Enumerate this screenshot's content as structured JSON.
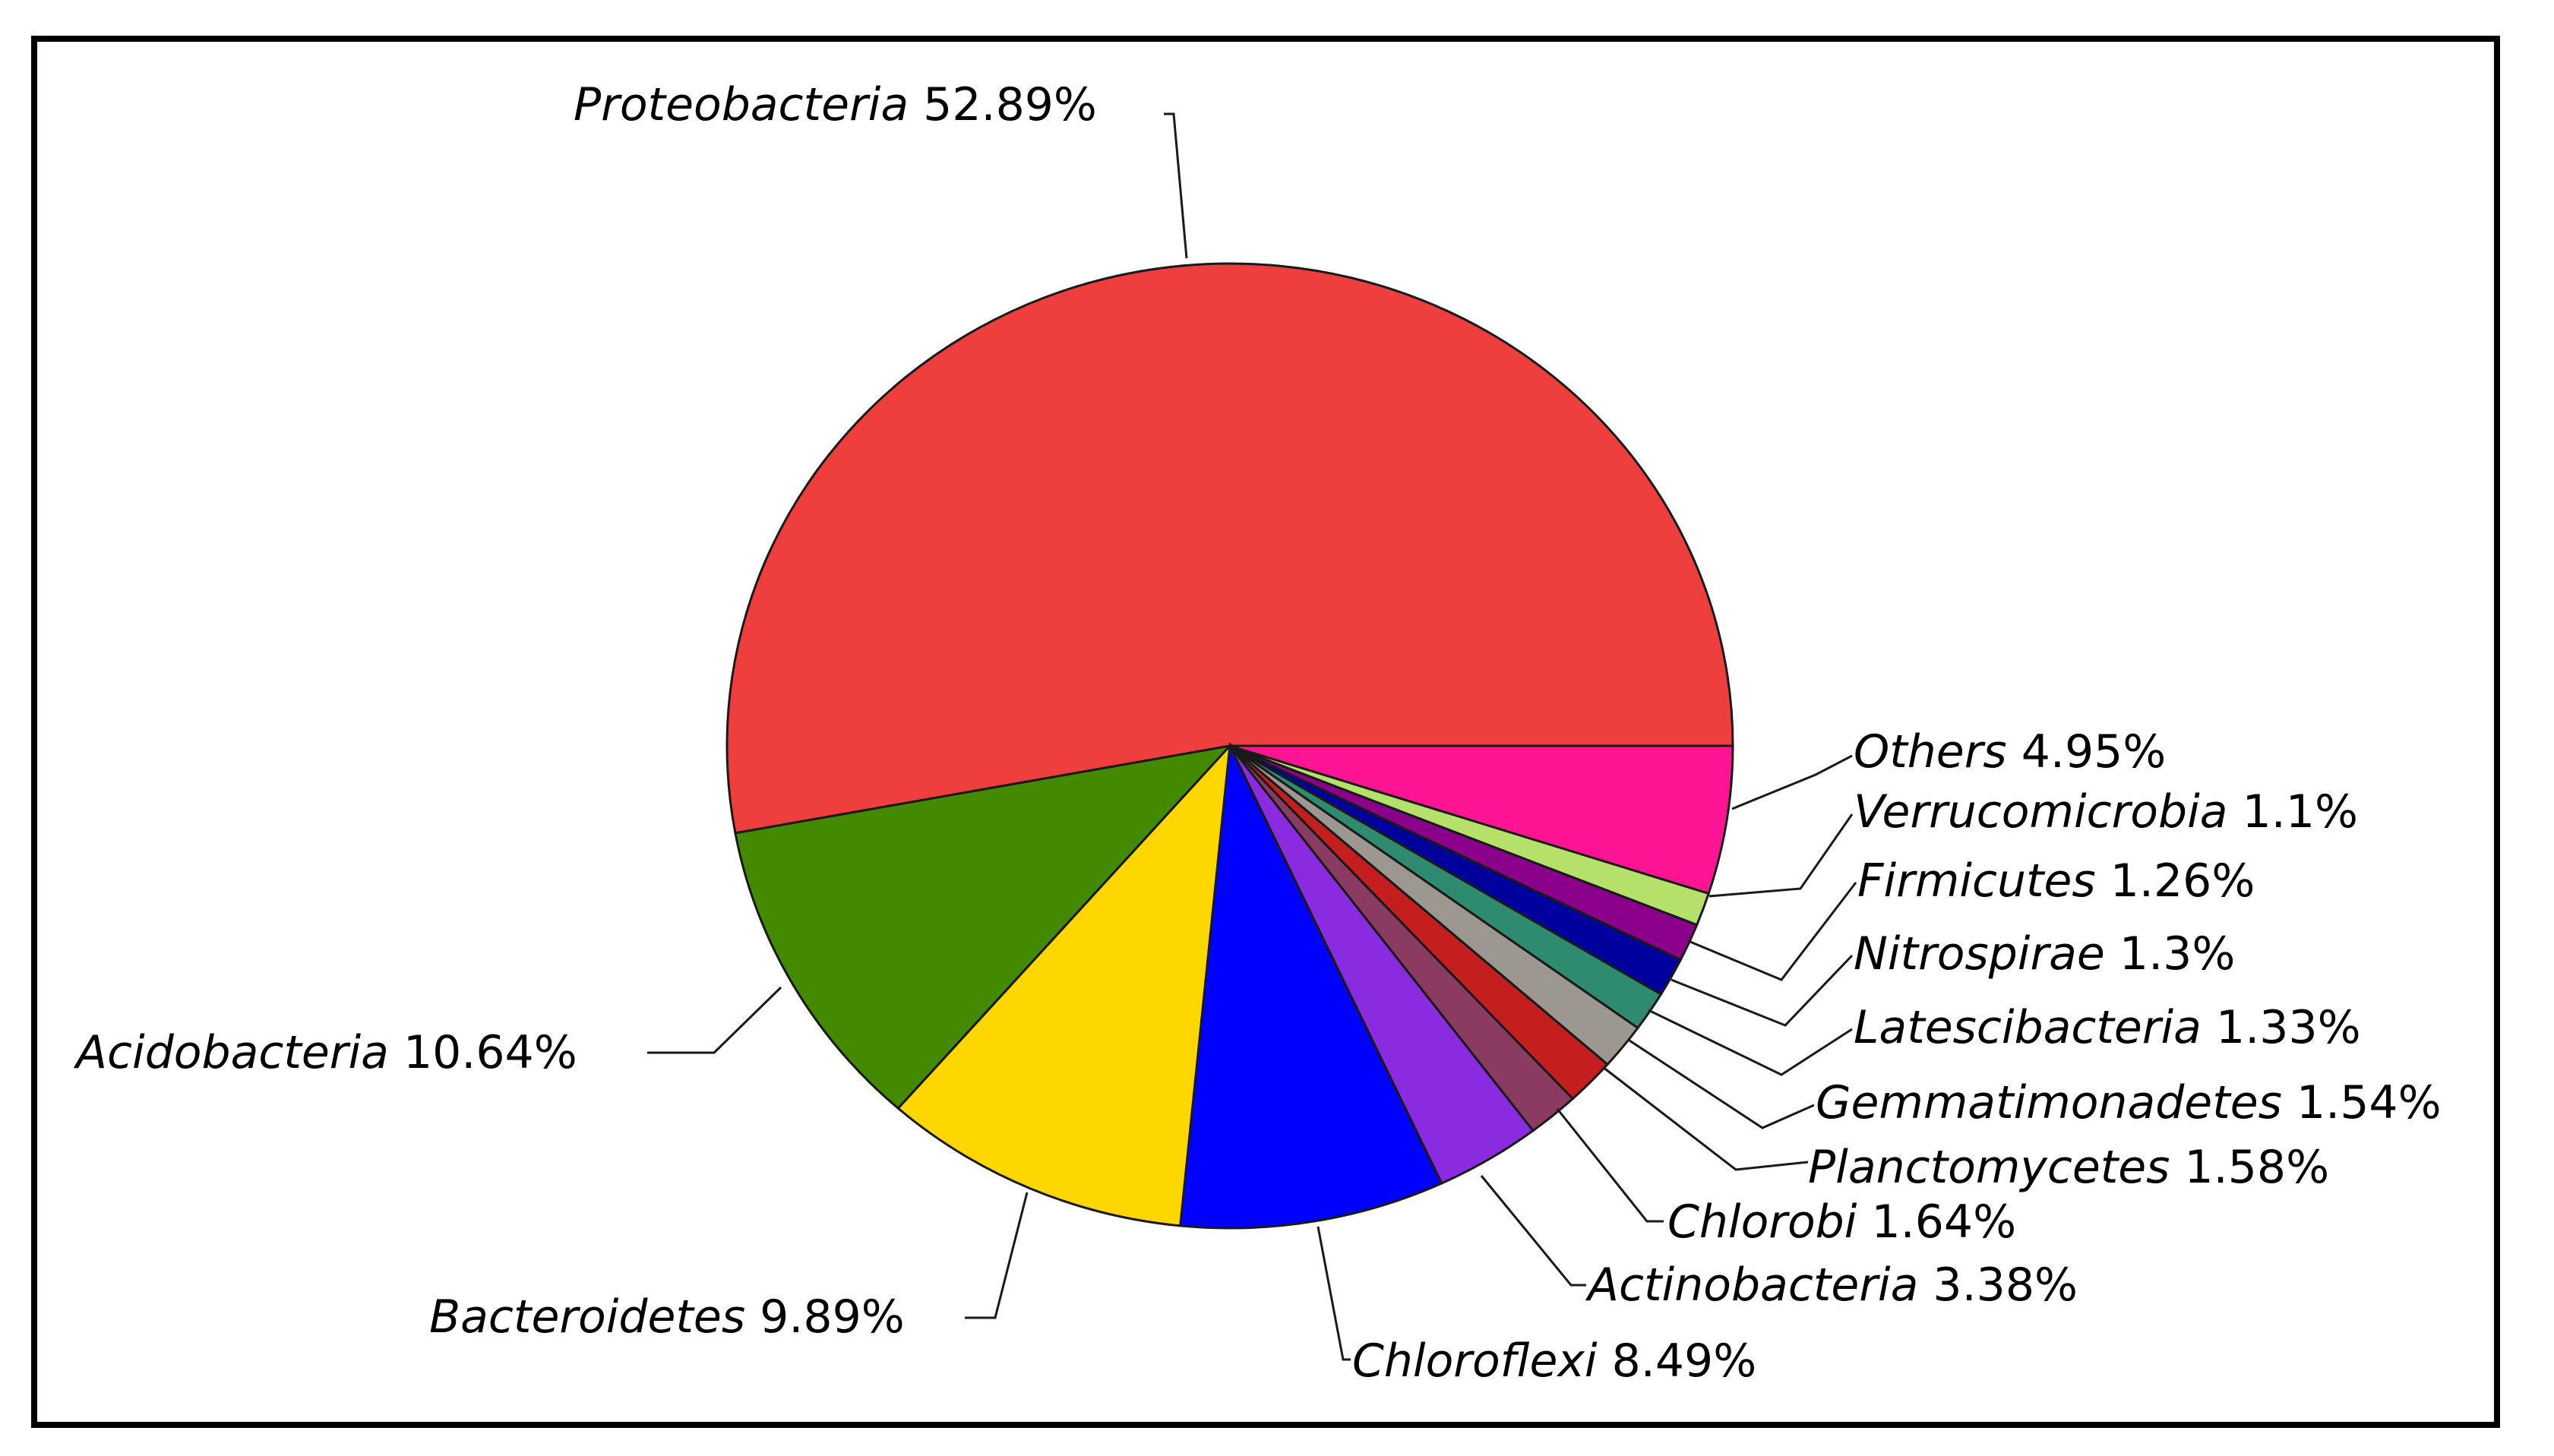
{
  "chart_data": {
    "type": "pie",
    "title": "",
    "legend": "none",
    "start": "3 o'clock, counter-clockwise",
    "slices": [
      {
        "name": "Proteobacteria",
        "value": 52.89,
        "display": "52.89%",
        "color": "#ef3e3e"
      },
      {
        "name": "Acidobacteria",
        "value": 10.64,
        "display": "10.64%",
        "color": "#438a00"
      },
      {
        "name": "Bacteroidetes",
        "value": 9.89,
        "display": "9.89%",
        "color": "#ffd700"
      },
      {
        "name": "Chloroflexi",
        "value": 8.49,
        "display": "8.49%",
        "color": "#0000ff"
      },
      {
        "name": "Actinobacteria",
        "value": 3.38,
        "display": "3.38%",
        "color": "#8a2be2"
      },
      {
        "name": "Chlorobi",
        "value": 1.64,
        "display": "1.64%",
        "color": "#8b3a62"
      },
      {
        "name": "Planctomycetes",
        "value": 1.58,
        "display": "1.58%",
        "color": "#c41e1e"
      },
      {
        "name": "Gemmatimonadetes",
        "value": 1.54,
        "display": "1.54%",
        "color": "#9c9890"
      },
      {
        "name": "Latescibacteria",
        "value": 1.33,
        "display": "1.33%",
        "color": "#2e8b70"
      },
      {
        "name": "Nitrospirae",
        "value": 1.3,
        "display": "1.3%",
        "color": "#00009c"
      },
      {
        "name": "Firmicutes",
        "value": 1.26,
        "display": "1.26%",
        "color": "#8b008b"
      },
      {
        "name": "Verrucomicrobia",
        "value": 1.1,
        "display": "1.1%",
        "color": "#b5e06a"
      },
      {
        "name": "Others",
        "value": 4.95,
        "display": "4.95%",
        "color": "#ff1493"
      }
    ]
  }
}
